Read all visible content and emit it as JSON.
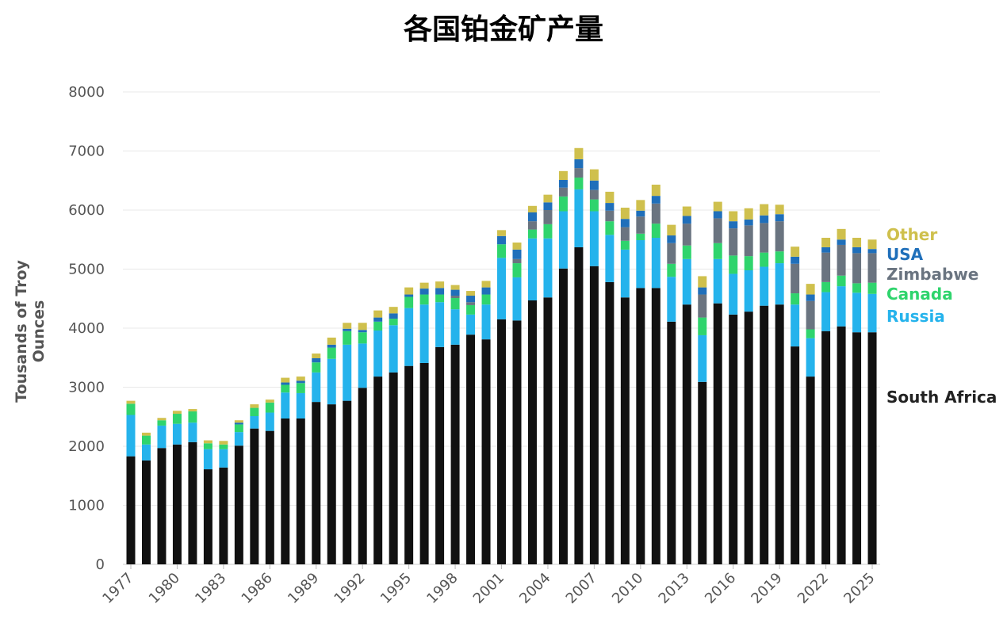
{
  "chart_data": {
    "type": "bar",
    "stacked": true,
    "title": "各国铂金矿产量",
    "ylabel": "Tousands of Troy Ounces",
    "xlabel": "",
    "ylim": [
      0,
      8000
    ],
    "yticks": [
      0,
      1000,
      2000,
      3000,
      4000,
      5000,
      6000,
      7000,
      8000
    ],
    "xtick_labels": [
      "1977",
      "1980",
      "1983",
      "1986",
      "1989",
      "1992",
      "1995",
      "1998",
      "2001",
      "2004",
      "2007",
      "2010",
      "2013",
      "2016",
      "2019",
      "2022",
      "2025"
    ],
    "grid": "horizontal",
    "legend_placement": "right",
    "categories": [
      1977,
      1978,
      1979,
      1980,
      1981,
      1982,
      1983,
      1984,
      1985,
      1986,
      1987,
      1988,
      1989,
      1990,
      1991,
      1992,
      1993,
      1994,
      1995,
      1996,
      1997,
      1998,
      1999,
      2000,
      2001,
      2002,
      2003,
      2004,
      2005,
      2006,
      2007,
      2008,
      2009,
      2010,
      2011,
      2012,
      2013,
      2014,
      2015,
      2016,
      2017,
      2018,
      2019,
      2020,
      2021,
      2022,
      2023,
      2024,
      2025
    ],
    "series": [
      {
        "name": "South Africa",
        "color": "#111111",
        "values": [
          1830,
          1760,
          1970,
          2030,
          2070,
          1610,
          1640,
          2010,
          2300,
          2260,
          2470,
          2470,
          2750,
          2710,
          2770,
          2990,
          3180,
          3250,
          3360,
          3410,
          3680,
          3720,
          3890,
          3810,
          4150,
          4130,
          4470,
          4520,
          5010,
          5370,
          5050,
          4780,
          4520,
          4680,
          4680,
          4110,
          4400,
          3090,
          4420,
          4230,
          4280,
          4380,
          4400,
          3690,
          3180,
          3950,
          4030,
          3930,
          3930
        ]
      },
      {
        "name": "Russia",
        "color": "#25b3ec",
        "values": [
          700,
          270,
          380,
          350,
          330,
          340,
          310,
          230,
          210,
          310,
          440,
          430,
          500,
          770,
          950,
          750,
          780,
          800,
          980,
          990,
          760,
          600,
          340,
          590,
          1040,
          730,
          1050,
          1000,
          970,
          980,
          930,
          800,
          810,
          810,
          850,
          760,
          770,
          790,
          750,
          690,
          700,
          660,
          700,
          710,
          650,
          660,
          680,
          670,
          650
        ]
      },
      {
        "name": "Canada",
        "color": "#2fd46d",
        "values": [
          190,
          150,
          90,
          170,
          190,
          100,
          80,
          130,
          140,
          170,
          130,
          170,
          170,
          190,
          230,
          190,
          150,
          110,
          190,
          170,
          130,
          190,
          160,
          170,
          230,
          240,
          150,
          240,
          250,
          200,
          200,
          230,
          150,
          110,
          240,
          220,
          230,
          300,
          270,
          310,
          240,
          240,
          200,
          190,
          150,
          170,
          180,
          160,
          190
        ]
      },
      {
        "name": "Zimbabwe",
        "color": "#6a7480",
        "values": [
          0,
          0,
          0,
          0,
          0,
          0,
          0,
          0,
          0,
          0,
          0,
          0,
          0,
          0,
          0,
          0,
          0,
          0,
          0,
          0,
          0,
          40,
          50,
          0,
          0,
          70,
          140,
          240,
          150,
          160,
          160,
          180,
          230,
          290,
          340,
          350,
          370,
          390,
          420,
          460,
          520,
          500,
          510,
          500,
          480,
          500,
          520,
          510,
          500
        ]
      },
      {
        "name": "USA",
        "color": "#1f6fba",
        "values": [
          0,
          0,
          0,
          0,
          0,
          0,
          0,
          30,
          0,
          0,
          40,
          40,
          70,
          50,
          40,
          40,
          70,
          90,
          40,
          100,
          110,
          100,
          110,
          120,
          140,
          160,
          150,
          130,
          130,
          150,
          160,
          130,
          140,
          100,
          130,
          130,
          130,
          120,
          120,
          120,
          100,
          130,
          120,
          120,
          110,
          90,
          90,
          100,
          70
        ]
      },
      {
        "name": "Other",
        "color": "#cfc04d",
        "values": [
          50,
          50,
          40,
          50,
          40,
          50,
          60,
          40,
          60,
          50,
          80,
          70,
          80,
          120,
          100,
          120,
          120,
          110,
          120,
          100,
          110,
          80,
          80,
          110,
          100,
          120,
          110,
          130,
          150,
          190,
          190,
          190,
          190,
          180,
          190,
          180,
          160,
          190,
          160,
          170,
          190,
          190,
          160,
          170,
          180,
          160,
          180,
          160,
          160
        ]
      }
    ]
  }
}
